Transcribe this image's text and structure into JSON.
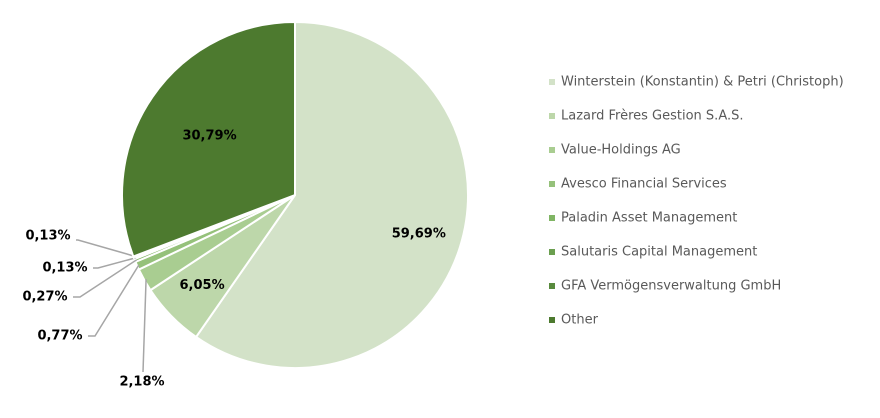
{
  "chart_data": {
    "type": "pie",
    "categories": [
      "Winterstein (Konstantin) & Petri (Christoph)",
      "Lazard Frères Gestion S.A.S.",
      "Value-Holdings AG",
      "Avesco Financial Services",
      "Paladin Asset Management",
      "Salutaris Capital Management",
      "GFA Vermögensverwaltung GmbH",
      "Other"
    ],
    "values": [
      59.69,
      6.05,
      2.18,
      0.77,
      0.27,
      0.13,
      0.13,
      30.79
    ],
    "value_labels": [
      "59,69%",
      "6,05%",
      "2,18%",
      "0,77%",
      "0,27%",
      "0,13%",
      "0,13%",
      "30,79%"
    ],
    "colors": [
      "#d3e2c8",
      "#bdd7aa",
      "#a9cd91",
      "#95c17a",
      "#80b564",
      "#6b9f4f",
      "#588a3d",
      "#4d7a2f"
    ]
  }
}
